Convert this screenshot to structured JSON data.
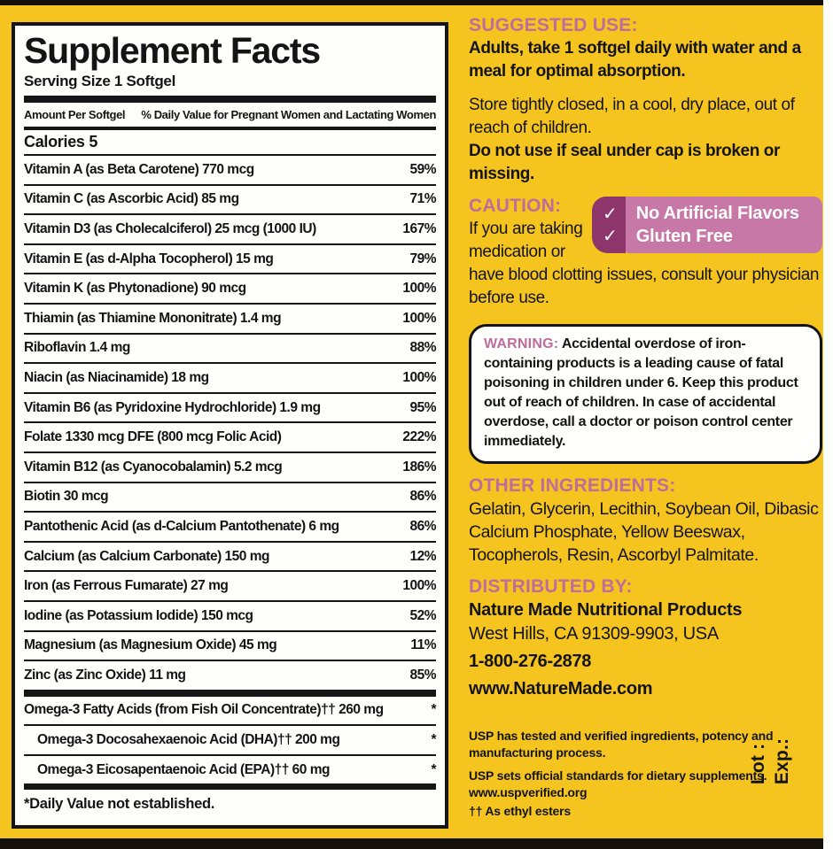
{
  "colors": {
    "background_yellow": "#F5C41E",
    "heading_pink": "#C06C9C",
    "badge_dark": "#8E356B",
    "badge_light": "#C778A7",
    "panel_white": "#FEFEFB",
    "text_black": "#141414"
  },
  "facts": {
    "title": "Supplement Facts",
    "serving": "Serving Size 1 Softgel",
    "col_left": "Amount Per Softgel",
    "col_right": "% Daily Value for Pregnant Women and Lactating Women",
    "calories": "Calories 5",
    "rows": [
      {
        "label": "Vitamin A (as Beta Carotene) 770 mcg",
        "dv": "59%"
      },
      {
        "label": "Vitamin C (as Ascorbic Acid) 85 mg",
        "dv": "71%"
      },
      {
        "label": "Vitamin D3 (as Cholecalciferol) 25 mcg (1000 IU)",
        "dv": "167%"
      },
      {
        "label": "Vitamin E (as d-Alpha Tocopherol) 15 mg",
        "dv": "79%"
      },
      {
        "label": "Vitamin K (as Phytonadione) 90 mcg",
        "dv": "100%"
      },
      {
        "label": "Thiamin (as Thiamine Mononitrate) 1.4 mg",
        "dv": "100%"
      },
      {
        "label": "Riboflavin 1.4 mg",
        "dv": "88%"
      },
      {
        "label": "Niacin (as Niacinamide) 18 mg",
        "dv": "100%"
      },
      {
        "label": "Vitamin B6 (as Pyridoxine Hydrochloride) 1.9 mg",
        "dv": "95%"
      },
      {
        "label": "Folate 1330 mcg DFE (800 mcg Folic Acid)",
        "dv": "222%"
      },
      {
        "label": "Vitamin B12 (as Cyanocobalamin) 5.2 mcg",
        "dv": "186%"
      },
      {
        "label": "Biotin 30 mcg",
        "dv": "86%"
      },
      {
        "label": "Pantothenic Acid (as d-Calcium Pantothenate) 6 mg",
        "dv": "86%"
      },
      {
        "label": "Calcium (as Calcium Carbonate) 150 mg",
        "dv": "12%"
      },
      {
        "label": "Iron (as Ferrous Fumarate) 27 mg",
        "dv": "100%"
      },
      {
        "label": "Iodine (as Potassium Iodide) 150 mcg",
        "dv": "52%"
      },
      {
        "label": "Magnesium (as Magnesium Oxide) 45 mg",
        "dv": "11%"
      },
      {
        "label": "Zinc (as Zinc Oxide) 11 mg",
        "dv": "85%"
      }
    ],
    "omega_rows": [
      {
        "label": "Omega-3 Fatty Acids (from Fish Oil Concentrate)†† 260 mg",
        "dv": "*"
      },
      {
        "label": "Omega-3 Docosahexaenoic Acid (DHA)†† 200 mg",
        "dv": "*"
      },
      {
        "label": "Omega-3 Eicosapentaenoic Acid (EPA)†† 60 mg",
        "dv": "*"
      }
    ],
    "footnote": "*Daily Value not established."
  },
  "right": {
    "suggested_use_heading": "SUGGESTED USE:",
    "suggested_use": "Adults, take 1 softgel daily with water and a meal for optimal absorption.",
    "storage": "Store tightly closed, in a cool, dry place, out of reach of children.",
    "seal_warning": "Do not use if seal under cap is broken or missing.",
    "caution_heading": "CAUTION:",
    "caution_text": "If you are taking medication or have blood clotting issues, consult your physician before use.",
    "badge": {
      "check_icon": "✓",
      "line1": "No Artificial Flavors",
      "line2": "Gluten Free"
    },
    "warning_heading": "WARNING:",
    "warning_text": " Accidental overdose of iron-containing products is a leading cause of fatal poisoning in children under 6. Keep this product out of reach of children. In case of accidental overdose, call a doctor or poison control center immediately.",
    "other_ingredients_heading": "OTHER INGREDIENTS:",
    "other_ingredients": "Gelatin, Glycerin, Lecithin, Soybean Oil, Dibasic Calcium Phosphate, Yellow Beeswax, Tocopherols, Resin, Ascorbyl Palmitate.",
    "distributed_heading": "DISTRIBUTED BY:",
    "company": "Nature Made Nutritional Products",
    "address": "West Hills, CA 91309-9903, USA",
    "phone": "1-800-276-2878",
    "website": "www.NatureMade.com",
    "usp_line1": "USP has tested and verified ingredients, potency and manufacturing process.",
    "usp_line2": "USP sets official standards for dietary supplements.",
    "usp_url": "www.uspverified.org",
    "esters_note": "†† As ethyl esters",
    "lot_label": "Lot :",
    "exp_label": "Exp.:"
  }
}
